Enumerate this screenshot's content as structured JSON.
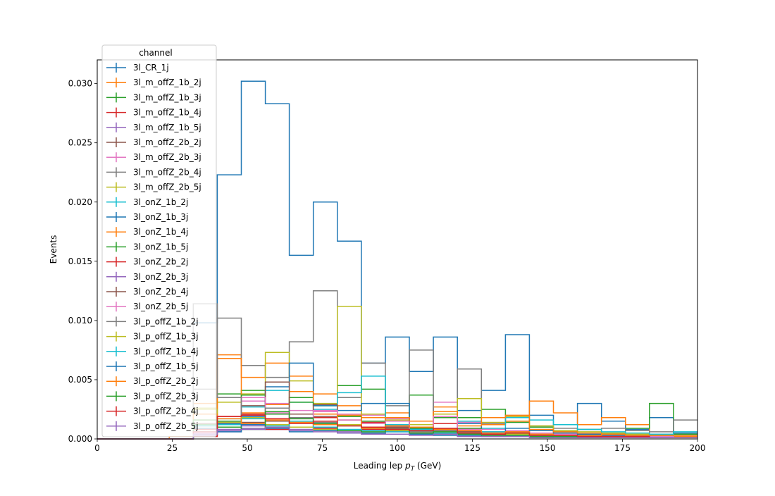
{
  "chart_data": {
    "type": "step-histogram",
    "xlabel": "Leading lep p_T (GeV)",
    "ylabel": "Events",
    "xlim": [
      0,
      200
    ],
    "ylim": [
      0,
      0.032
    ],
    "xticks": [
      0,
      25,
      50,
      75,
      100,
      125,
      150,
      175,
      200
    ],
    "yticks": [
      0.0,
      0.005,
      0.01,
      0.015,
      0.02,
      0.025,
      0.03
    ],
    "ytick_labels": [
      "0.000",
      "0.005",
      "0.010",
      "0.015",
      "0.020",
      "0.025",
      "0.030"
    ],
    "legend_title": "channel",
    "legend_position": "upper-left",
    "bin_edges": [
      0,
      8,
      16,
      24,
      32,
      40,
      48,
      56,
      64,
      72,
      80,
      88,
      96,
      104,
      112,
      120,
      128,
      136,
      144,
      152,
      160,
      168,
      176,
      184,
      192,
      200
    ],
    "series": [
      {
        "name": "3l_CR_1j",
        "color": "#1f77b4",
        "values": [
          0,
          0,
          0,
          0,
          0.0098,
          0.0223,
          0.0302,
          0.0283,
          0.0155,
          0.02,
          0.0167,
          0.0064,
          0.0086,
          0.0057,
          0.0086,
          0.0024,
          0.0041,
          0.0088,
          0.002,
          0.0012,
          0.003,
          0.0015,
          0.0008,
          0.0018,
          0.0005
        ]
      },
      {
        "name": "3l_m_offZ_1b_2j",
        "color": "#ff7f0e",
        "values": [
          0,
          0,
          0,
          0.0002,
          0.003,
          0.0071,
          0.0052,
          0.0064,
          0.0053,
          0.0038,
          0.0028,
          0.0018,
          0.0022,
          0.0015,
          0.0027,
          0.0018,
          0.0012,
          0.0015,
          0.0032,
          0.0022,
          0.0012,
          0.0018,
          0.0012,
          0.0003,
          0.0003
        ]
      },
      {
        "name": "3l_m_offZ_1b_3j",
        "color": "#2ca02c",
        "values": [
          0,
          0,
          0,
          0,
          0.0012,
          0.0038,
          0.0041,
          0.0029,
          0.0035,
          0.0028,
          0.0045,
          0.0042,
          0.0015,
          0.0037,
          0.0018,
          0.0018,
          0.0025,
          0.0014,
          0.001,
          0.0006,
          0.0008,
          0.0005,
          0.0009,
          0.003,
          0.0004
        ]
      },
      {
        "name": "3l_m_offZ_1b_4j",
        "color": "#d62728",
        "values": [
          0,
          0,
          0,
          0,
          0.0008,
          0.0019,
          0.0021,
          0.0017,
          0.0015,
          0.0018,
          0.0012,
          0.0014,
          0.0011,
          0.0009,
          0.0013,
          0.0008,
          0.0005,
          0.0006,
          0.0004,
          0.0003,
          0.0004,
          0.0003,
          0.0003,
          0.0002,
          0.0002
        ]
      },
      {
        "name": "3l_m_offZ_1b_5j",
        "color": "#9467bd",
        "values": [
          0,
          0,
          0,
          0,
          0.0003,
          0.0007,
          0.0009,
          0.0008,
          0.0007,
          0.0009,
          0.0006,
          0.0005,
          0.0006,
          0.0004,
          0.0005,
          0.0003,
          0.0002,
          0.0003,
          0.0002,
          0.0001,
          0.0002,
          0.0001,
          0.0001,
          0.0001,
          0.0001
        ]
      },
      {
        "name": "3l_m_offZ_2b_2j",
        "color": "#8c564b",
        "values": [
          0,
          0,
          0,
          0,
          0.0009,
          0.0013,
          0.0014,
          0.0015,
          0.0021,
          0.0019,
          0.0016,
          0.001,
          0.0009,
          0.0008,
          0.0007,
          0.0006,
          0.0006,
          0.0005,
          0.0004,
          0.0003,
          0.0003,
          0.0002,
          0.0002,
          0.0002,
          0.0001
        ]
      },
      {
        "name": "3l_m_offZ_2b_3j",
        "color": "#e377c2",
        "values": [
          0,
          0,
          0,
          0,
          0.0006,
          0.0012,
          0.0032,
          0.003,
          0.0024,
          0.0023,
          0.0021,
          0.002,
          0.0017,
          0.0009,
          0.0031,
          0.0014,
          0.0008,
          0.0007,
          0.0005,
          0.0004,
          0.0003,
          0.0003,
          0.0002,
          0.0002,
          0.0002
        ]
      },
      {
        "name": "3l_m_offZ_2b_4j",
        "color": "#7f7f7f",
        "values": [
          0,
          0,
          0,
          0,
          0.0042,
          0.0102,
          0.0062,
          0.0052,
          0.0082,
          0.0125,
          0.0035,
          0.0064,
          0.0028,
          0.0075,
          0.0021,
          0.0059,
          0.0013,
          0.0019,
          0.0011,
          0.0009,
          0.0008,
          0.0009,
          0.0007,
          0.0006,
          0.0016
        ]
      },
      {
        "name": "3l_m_offZ_2b_5j",
        "color": "#bcbd22",
        "values": [
          0,
          0,
          0,
          0,
          0.0026,
          0.0031,
          0.0038,
          0.0073,
          0.0049,
          0.003,
          0.0112,
          0.0021,
          0.0016,
          0.0012,
          0.0021,
          0.0034,
          0.0014,
          0.0019,
          0.0011,
          0.0007,
          0.0006,
          0.0005,
          0.0004,
          0.0003,
          0.0002
        ]
      },
      {
        "name": "3l_onZ_1b_2j",
        "color": "#17becf",
        "values": [
          0,
          0,
          0,
          0,
          0.0011,
          0.0017,
          0.0027,
          0.0041,
          0.0031,
          0.0025,
          0.0039,
          0.0053,
          0.0012,
          0.0008,
          0.0007,
          0.0015,
          0.0009,
          0.0018,
          0.0016,
          0.0012,
          0.0008,
          0.0006,
          0.0005,
          0.0004,
          0.0006
        ]
      },
      {
        "name": "3l_onZ_1b_3j",
        "color": "#1f77b4",
        "values": [
          0,
          0,
          0,
          0,
          0.0006,
          0.0013,
          0.0019,
          0.0044,
          0.0064,
          0.0028,
          0.0024,
          0.003,
          0.003,
          0.0009,
          0.0006,
          0.0013,
          0.0005,
          0.0009,
          0.0007,
          0.0005,
          0.0004,
          0.0003,
          0.0003,
          0.0002,
          0.0002
        ]
      },
      {
        "name": "3l_onZ_1b_4j",
        "color": "#ff7f0e",
        "values": [
          0,
          0,
          0,
          0,
          0.0016,
          0.0068,
          0.0022,
          0.0029,
          0.004,
          0.0021,
          0.0019,
          0.0013,
          0.0018,
          0.0009,
          0.0023,
          0.0011,
          0.0018,
          0.002,
          0.0008,
          0.0006,
          0.0005,
          0.0004,
          0.0003,
          0.0003,
          0.0002
        ]
      },
      {
        "name": "3l_onZ_1b_5j",
        "color": "#2ca02c",
        "values": [
          0,
          0,
          0,
          0,
          0.0004,
          0.0015,
          0.0037,
          0.0021,
          0.0031,
          0.001,
          0.0019,
          0.0015,
          0.0007,
          0.0009,
          0.0005,
          0.0009,
          0.0004,
          0.0006,
          0.0004,
          0.0003,
          0.0003,
          0.0002,
          0.0002,
          0.0002,
          0.0001
        ]
      },
      {
        "name": "3l_onZ_2b_2j",
        "color": "#d62728",
        "values": [
          0,
          0,
          0,
          0,
          0.0002,
          0.0012,
          0.0012,
          0.0008,
          0.0015,
          0.0009,
          0.0012,
          0.0008,
          0.001,
          0.0006,
          0.0008,
          0.0005,
          0.0003,
          0.0004,
          0.0003,
          0.0002,
          0.0002,
          0.0002,
          0.0001,
          0.0001,
          0.0001
        ]
      },
      {
        "name": "3l_onZ_2b_3j",
        "color": "#9467bd",
        "values": [
          0,
          0,
          0,
          0,
          0.0005,
          0.0006,
          0.0011,
          0.0012,
          0.0008,
          0.0013,
          0.0007,
          0.0009,
          0.0006,
          0.0005,
          0.0006,
          0.0004,
          0.0003,
          0.0003,
          0.0002,
          0.0002,
          0.0002,
          0.0001,
          0.0001,
          0.0001,
          0.0001
        ]
      },
      {
        "name": "3l_onZ_2b_4j",
        "color": "#8c564b",
        "values": [
          0,
          0,
          0,
          0,
          0.0013,
          0.001,
          0.0028,
          0.0048,
          0.0021,
          0.0029,
          0.0012,
          0.0009,
          0.001,
          0.0007,
          0.0008,
          0.0006,
          0.0004,
          0.0005,
          0.0003,
          0.0003,
          0.0002,
          0.0002,
          0.0002,
          0.0001,
          0.0001
        ]
      },
      {
        "name": "3l_onZ_2b_5j",
        "color": "#e377c2",
        "values": [
          0,
          0,
          0,
          0,
          0.0005,
          0.0014,
          0.0035,
          0.0022,
          0.0018,
          0.0024,
          0.0016,
          0.0013,
          0.0015,
          0.0007,
          0.0019,
          0.0008,
          0.0005,
          0.0006,
          0.0004,
          0.0003,
          0.0003,
          0.0002,
          0.0002,
          0.0002,
          0.0001
        ]
      },
      {
        "name": "3l_p_offZ_1b_2j",
        "color": "#7f7f7f",
        "values": [
          0,
          0,
          0,
          0,
          0.0114,
          0.0035,
          0.0013,
          0.0026,
          0.0018,
          0.0014,
          0.0011,
          0.0009,
          0.0008,
          0.0006,
          0.0007,
          0.0005,
          0.0004,
          0.0004,
          0.0003,
          0.0002,
          0.0002,
          0.0002,
          0.0001,
          0.0001,
          0.0001
        ]
      },
      {
        "name": "3l_p_offZ_1b_3j",
        "color": "#bcbd22",
        "values": [
          0,
          0,
          0,
          0,
          0.0025,
          0.0014,
          0.0018,
          0.0012,
          0.001,
          0.0008,
          0.0012,
          0.0009,
          0.0007,
          0.0005,
          0.0006,
          0.0007,
          0.0004,
          0.0004,
          0.0003,
          0.0002,
          0.0002,
          0.0002,
          0.0001,
          0.0001,
          0.0001
        ]
      },
      {
        "name": "3l_p_offZ_1b_4j",
        "color": "#17becf",
        "values": [
          0,
          0,
          0,
          0,
          0.0011,
          0.0012,
          0.0017,
          0.0011,
          0.0015,
          0.001,
          0.0008,
          0.0007,
          0.0006,
          0.0008,
          0.0005,
          0.0004,
          0.0006,
          0.0003,
          0.0003,
          0.0002,
          0.0002,
          0.0002,
          0.0001,
          0.0001,
          0.0001
        ]
      },
      {
        "name": "3l_p_offZ_1b_5j",
        "color": "#1f77b4",
        "values": [
          0,
          0,
          0,
          0,
          0.0009,
          0.0006,
          0.0012,
          0.0009,
          0.0006,
          0.0007,
          0.0005,
          0.0005,
          0.0004,
          0.0004,
          0.0003,
          0.0003,
          0.0002,
          0.0002,
          0.0002,
          0.0001,
          0.0001,
          0.0001,
          0.0001,
          0.0001,
          0.0001
        ]
      },
      {
        "name": "3l_p_offZ_2b_2j",
        "color": "#ff7f0e",
        "values": [
          0,
          0,
          0,
          0,
          0.0021,
          0.0017,
          0.0013,
          0.0016,
          0.0014,
          0.0012,
          0.002,
          0.0009,
          0.0011,
          0.001,
          0.0008,
          0.0007,
          0.0005,
          0.0006,
          0.0004,
          0.0003,
          0.0003,
          0.0002,
          0.0002,
          0.0001,
          0.0001
        ]
      },
      {
        "name": "3l_p_offZ_2b_3j",
        "color": "#2ca02c",
        "values": [
          0,
          0,
          0,
          0,
          0.0016,
          0.001,
          0.0008,
          0.0023,
          0.0017,
          0.0013,
          0.0007,
          0.0006,
          0.0008,
          0.0005,
          0.0006,
          0.0004,
          0.0003,
          0.0003,
          0.0002,
          0.0002,
          0.0002,
          0.0001,
          0.0001,
          0.0001,
          0.0001
        ]
      },
      {
        "name": "3l_p_offZ_2b_4j",
        "color": "#d62728",
        "values": [
          0,
          0,
          0,
          0,
          0.0006,
          0.0019,
          0.002,
          0.0017,
          0.0013,
          0.0015,
          0.0011,
          0.001,
          0.0008,
          0.0007,
          0.0009,
          0.0005,
          0.0004,
          0.0005,
          0.0003,
          0.0003,
          0.0002,
          0.0002,
          0.0002,
          0.0001,
          0.0001
        ]
      },
      {
        "name": "3l_p_offZ_2b_5j",
        "color": "#9467bd",
        "values": [
          0,
          0,
          0,
          0,
          0.0004,
          0.0008,
          0.0008,
          0.001,
          0.0007,
          0.0006,
          0.0005,
          0.0004,
          0.0004,
          0.0003,
          0.0004,
          0.0002,
          0.0002,
          0.0002,
          0.0001,
          0.0001,
          0.0001,
          0.0001,
          0.0001,
          0.0001,
          0.0001
        ]
      }
    ]
  }
}
